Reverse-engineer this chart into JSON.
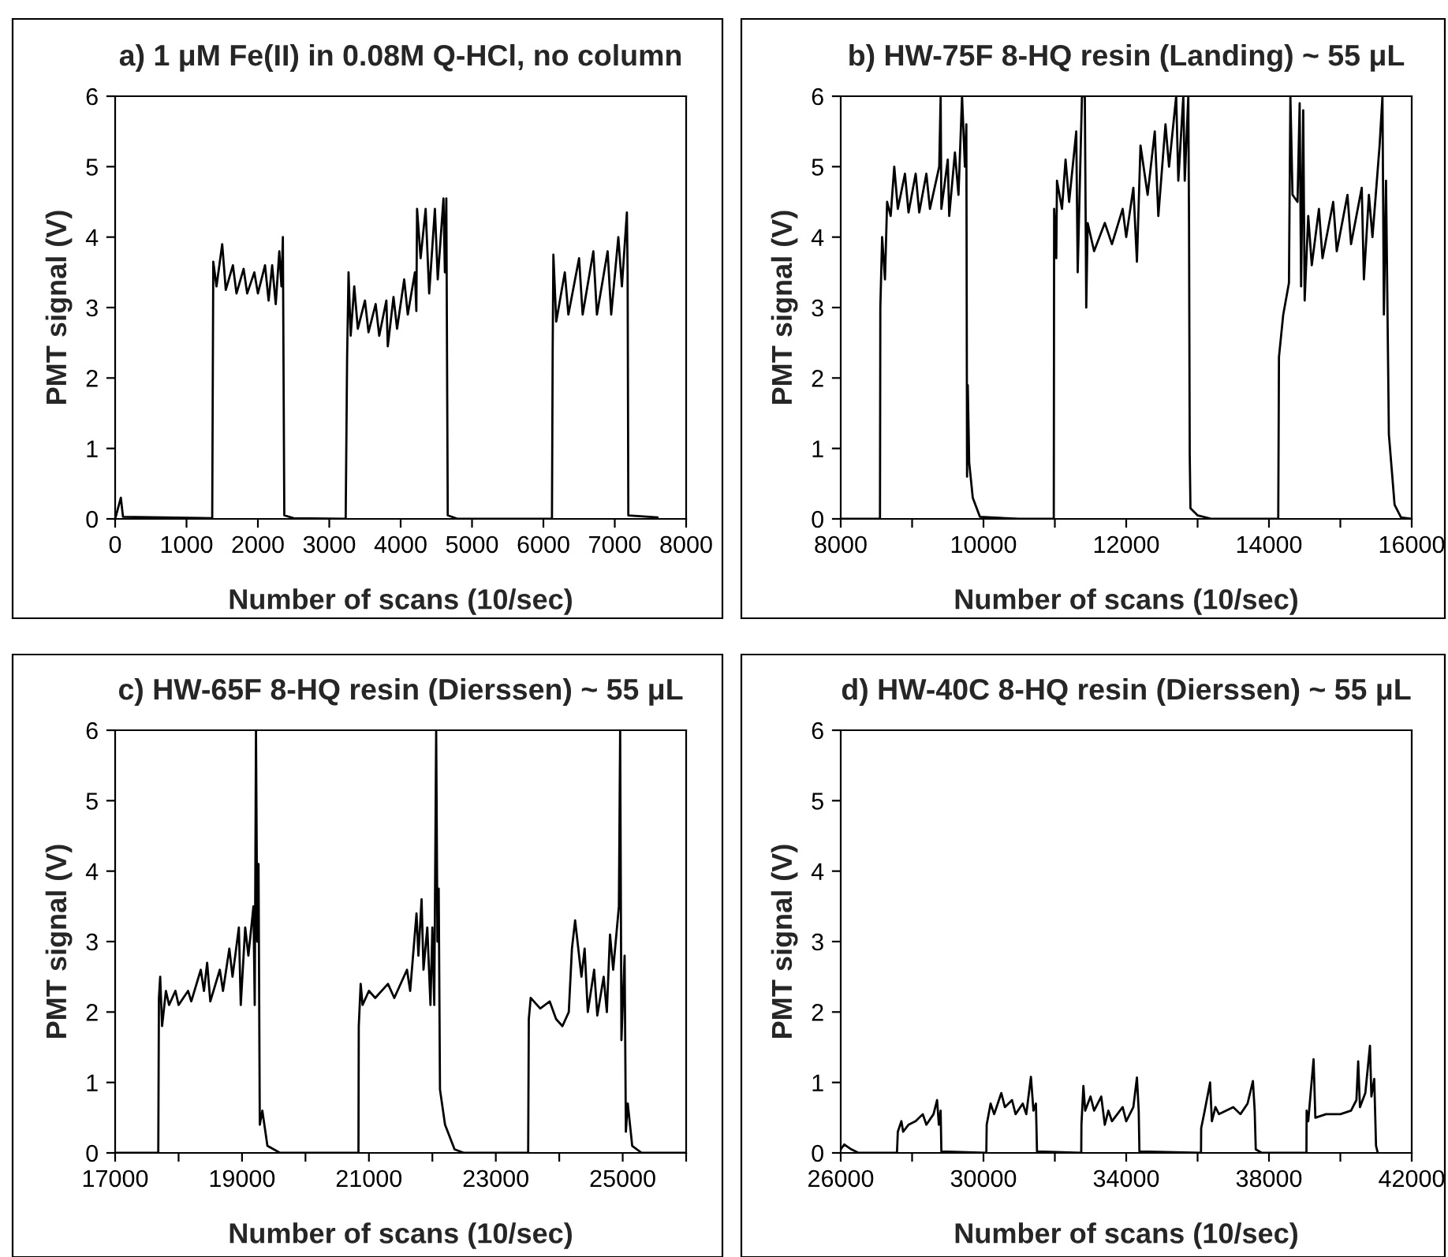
{
  "chart_data": [
    {
      "type": "line",
      "title": "a) 1 μM Fe(II) in 0.08M Q-HCl, no column",
      "xlabel": "Number of scans (10/sec)",
      "ylabel": "PMT signal (V)",
      "xlim": [
        0,
        8000
      ],
      "ylim": [
        0,
        6
      ],
      "xticks": [
        0,
        1000,
        2000,
        3000,
        4000,
        5000,
        6000,
        7000,
        8000
      ],
      "yticks": [
        0,
        1,
        2,
        3,
        4,
        5,
        6
      ],
      "grid": false,
      "legend": false,
      "series": [
        {
          "color": "#000000",
          "x": [
            0,
            80,
            110,
            1360,
            1375,
            1420,
            1500,
            1550,
            1650,
            1700,
            1800,
            1850,
            1950,
            2000,
            2100,
            2150,
            2200,
            2250,
            2300,
            2330,
            2350,
            2370,
            2500,
            3230,
            3250,
            3270,
            3300,
            3350,
            3400,
            3500,
            3550,
            3650,
            3700,
            3800,
            3820,
            3900,
            3950,
            4050,
            4100,
            4200,
            4220,
            4230,
            4280,
            4350,
            4400,
            4480,
            4520,
            4600,
            4620,
            4640,
            4660,
            4800,
            6120,
            6130,
            6140,
            6180,
            6300,
            6350,
            6500,
            6550,
            6700,
            6750,
            6900,
            6950,
            7050,
            7100,
            7170,
            7180,
            7190,
            7600
          ],
          "values": [
            0,
            0.3,
            0.03,
            0.01,
            3.65,
            3.3,
            3.9,
            3.25,
            3.6,
            3.2,
            3.55,
            3.2,
            3.5,
            3.2,
            3.6,
            3.1,
            3.6,
            3.05,
            3.8,
            3.3,
            4.0,
            0.05,
            0.01,
            0,
            2.3,
            3.5,
            2.6,
            3.3,
            2.7,
            3.1,
            2.65,
            3.05,
            2.6,
            3.1,
            2.45,
            3.15,
            2.7,
            3.4,
            2.9,
            3.5,
            2.95,
            4.4,
            3.7,
            4.4,
            3.2,
            4.4,
            3.4,
            4.55,
            3.5,
            4.55,
            0.05,
            0,
            0,
            2.4,
            3.75,
            2.8,
            3.5,
            2.9,
            3.7,
            2.9,
            3.8,
            2.9,
            3.8,
            2.9,
            4.0,
            3.3,
            4.35,
            3.5,
            0.05,
            0.02
          ]
        }
      ]
    },
    {
      "type": "line",
      "title": "b) HW-75F 8-HQ resin (Landing) ~ 55 μL",
      "xlabel": "Number of scans (10/sec)",
      "ylabel": "PMT signal (V)",
      "xlim": [
        8000,
        16000
      ],
      "ylim": [
        0,
        6
      ],
      "xticks": [
        8000,
        {
          "value": 9000,
          "label": null
        },
        10000,
        {
          "value": 11000,
          "label": null
        },
        12000,
        {
          "value": 13000,
          "label": null
        },
        14000,
        {
          "value": 15000,
          "label": null
        },
        16000
      ],
      "yticks": [
        0,
        1,
        2,
        3,
        4,
        5,
        6
      ],
      "grid": false,
      "legend": false,
      "series": [
        {
          "color": "#000000",
          "x": [
            8000,
            8550,
            8555,
            8580,
            8620,
            8650,
            8700,
            8750,
            8800,
            8900,
            8950,
            9050,
            9100,
            9200,
            9250,
            9380,
            9400,
            9410,
            9500,
            9520,
            9600,
            9650,
            9700,
            9740,
            9760,
            9770,
            9780,
            9800,
            9850,
            9950,
            10500,
            10985,
            10990,
            11020,
            11030,
            11100,
            11150,
            11200,
            11300,
            11320,
            11380,
            11420,
            11440,
            11460,
            11550,
            11700,
            11800,
            11950,
            12000,
            12100,
            12150,
            12200,
            12300,
            12400,
            12450,
            12550,
            12600,
            12700,
            12730,
            12800,
            12820,
            12870,
            12880,
            12890,
            12900,
            13000,
            13200,
            14130,
            14140,
            14200,
            14280,
            14300,
            14330,
            14400,
            14430,
            14450,
            14480,
            14500,
            14550,
            14600,
            14700,
            14750,
            14900,
            14950,
            15100,
            15150,
            15300,
            15330,
            15400,
            15450,
            15550,
            15590,
            15610,
            15640,
            15680,
            15720,
            15760,
            15850,
            16000
          ],
          "values": [
            0,
            0,
            3.0,
            4.0,
            3.4,
            4.5,
            4.3,
            5.0,
            4.4,
            4.9,
            4.35,
            4.9,
            4.35,
            4.9,
            4.4,
            5.0,
            6.0,
            4.4,
            5.1,
            4.3,
            5.2,
            4.6,
            6.0,
            5.0,
            5.6,
            0.6,
            1.9,
            0.8,
            0.3,
            0.03,
            0,
            0,
            4.4,
            3.7,
            4.8,
            4.4,
            5.1,
            4.5,
            5.5,
            3.5,
            6.0,
            6.0,
            3.0,
            4.2,
            3.8,
            4.2,
            3.9,
            4.4,
            4.0,
            4.7,
            3.65,
            5.3,
            4.6,
            5.5,
            4.3,
            5.6,
            5.0,
            6.0,
            4.8,
            6.0,
            4.8,
            6.0,
            4.2,
            0.9,
            0.15,
            0.05,
            0,
            0,
            2.3,
            2.9,
            3.35,
            6.0,
            4.6,
            4.5,
            5.9,
            3.3,
            5.8,
            3.1,
            4.3,
            3.6,
            4.4,
            3.7,
            4.5,
            3.8,
            4.6,
            3.9,
            4.7,
            3.4,
            4.6,
            4.0,
            5.3,
            6.0,
            2.9,
            4.8,
            1.2,
            0.7,
            0.2,
            0.02,
            0
          ]
        }
      ]
    },
    {
      "type": "line",
      "title": "c) HW-65F 8-HQ resin (Dierssen) ~ 55 μL",
      "xlabel": "Number of scans (10/sec)",
      "ylabel": "PMT signal (V)",
      "xlim": [
        17000,
        26000
      ],
      "ylim": [
        0,
        6
      ],
      "xticks": [
        17000,
        {
          "value": 18000,
          "label": null
        },
        19000,
        {
          "value": 20000,
          "label": null
        },
        21000,
        {
          "value": 22000,
          "label": null
        },
        23000,
        {
          "value": 24000,
          "label": null
        },
        25000,
        {
          "value": 26000,
          "label": null
        }
      ],
      "yticks": [
        0,
        1,
        2,
        3,
        4,
        5,
        6
      ],
      "grid": false,
      "legend": false,
      "series": [
        {
          "color": "#000000",
          "x": [
            17000,
            17680,
            17690,
            17710,
            17740,
            17800,
            17850,
            17950,
            18000,
            18150,
            18200,
            18350,
            18400,
            18450,
            18500,
            18650,
            18700,
            18800,
            18850,
            18950,
            18980,
            19050,
            19100,
            19180,
            19200,
            19220,
            19240,
            19260,
            19280,
            19320,
            19400,
            19600,
            20835,
            20840,
            20870,
            20900,
            21000,
            21100,
            21300,
            21400,
            21600,
            21650,
            21750,
            21780,
            21830,
            21860,
            21920,
            21970,
            22000,
            22030,
            22060,
            22080,
            22100,
            22120,
            22200,
            22350,
            22500,
            23510,
            23520,
            23550,
            23700,
            23850,
            23950,
            24050,
            24150,
            24200,
            24250,
            24350,
            24400,
            24450,
            24550,
            24600,
            24700,
            24750,
            24800,
            24850,
            24900,
            24940,
            24960,
            24980,
            25030,
            25050,
            25080,
            25150,
            25300,
            26000
          ],
          "values": [
            0,
            0,
            2.2,
            2.5,
            1.8,
            2.3,
            2.1,
            2.3,
            2.1,
            2.3,
            2.15,
            2.6,
            2.3,
            2.7,
            2.15,
            2.6,
            2.3,
            2.9,
            2.5,
            3.2,
            2.1,
            3.2,
            2.8,
            3.5,
            2.1,
            6.0,
            3.0,
            4.1,
            0.4,
            0.6,
            0.1,
            0,
            0,
            1.8,
            2.4,
            2.1,
            2.3,
            2.2,
            2.4,
            2.2,
            2.6,
            2.3,
            3.4,
            2.8,
            3.6,
            2.6,
            3.2,
            2.1,
            3.2,
            2.1,
            6.0,
            3.0,
            3.75,
            0.9,
            0.4,
            0.05,
            0,
            0,
            1.9,
            2.2,
            2.05,
            2.15,
            1.9,
            1.8,
            2.0,
            2.9,
            3.3,
            2.5,
            2.9,
            2.0,
            2.6,
            1.95,
            2.5,
            2.0,
            3.1,
            2.6,
            3.1,
            3.5,
            6.0,
            1.6,
            2.8,
            0.3,
            0.7,
            0.1,
            0,
            0
          ]
        }
      ]
    },
    {
      "type": "line",
      "title": "d) HW-40C 8-HQ resin (Dierssen) ~ 55 μL",
      "xlabel": "Number of scans (10/sec)",
      "ylabel": "PMT signal (V)",
      "xlim": [
        26000,
        42000
      ],
      "ylim": [
        0,
        6
      ],
      "xticks": [
        26000,
        {
          "value": 28000,
          "label": null
        },
        30000,
        {
          "value": 32000,
          "label": null
        },
        34000,
        {
          "value": 36000,
          "label": null
        },
        38000,
        {
          "value": 40000,
          "label": null
        },
        42000
      ],
      "yticks": [
        0,
        1,
        2,
        3,
        4,
        5,
        6
      ],
      "grid": false,
      "legend": false,
      "series": [
        {
          "color": "#000000",
          "x": [
            26000,
            26100,
            26300,
            26500,
            27575,
            27580,
            27600,
            27700,
            27750,
            27900,
            28100,
            28300,
            28400,
            28600,
            28700,
            28750,
            28800,
            28820,
            30080,
            30090,
            30200,
            30300,
            30500,
            30600,
            30800,
            30900,
            31100,
            31200,
            31330,
            31400,
            31470,
            31500,
            32740,
            32745,
            32800,
            32850,
            33000,
            33100,
            33300,
            33350,
            33400,
            33500,
            33600,
            33900,
            34000,
            34200,
            34300,
            34350,
            34370,
            36095,
            36100,
            36200,
            36350,
            36400,
            36500,
            36600,
            37000,
            37200,
            37400,
            37550,
            37600,
            37630,
            37800,
            39050,
            39055,
            39100,
            39250,
            39300,
            39600,
            40000,
            40300,
            40450,
            40500,
            40550,
            40700,
            40830,
            40870,
            40950,
            41000,
            41050
          ],
          "values": [
            0.05,
            0.12,
            0.05,
            0,
            0,
            0.05,
            0.3,
            0.45,
            0.3,
            0.4,
            0.45,
            0.55,
            0.4,
            0.55,
            0.75,
            0.4,
            0.6,
            0.02,
            0,
            0.4,
            0.7,
            0.55,
            0.85,
            0.65,
            0.75,
            0.55,
            0.7,
            0.55,
            1.08,
            0.6,
            0.7,
            0.02,
            0,
            0.4,
            0.95,
            0.6,
            0.8,
            0.6,
            0.8,
            0.6,
            0.4,
            0.6,
            0.45,
            0.65,
            0.45,
            0.65,
            1.07,
            0.6,
            0.02,
            0,
            0.35,
            0.6,
            1.0,
            0.45,
            0.65,
            0.55,
            0.65,
            0.55,
            0.7,
            1.02,
            0.6,
            0.05,
            0,
            0,
            0.6,
            0.45,
            1.33,
            0.5,
            0.55,
            0.55,
            0.6,
            0.75,
            1.3,
            0.65,
            0.85,
            1.52,
            0.8,
            1.05,
            0.1,
            0
          ]
        }
      ]
    }
  ]
}
